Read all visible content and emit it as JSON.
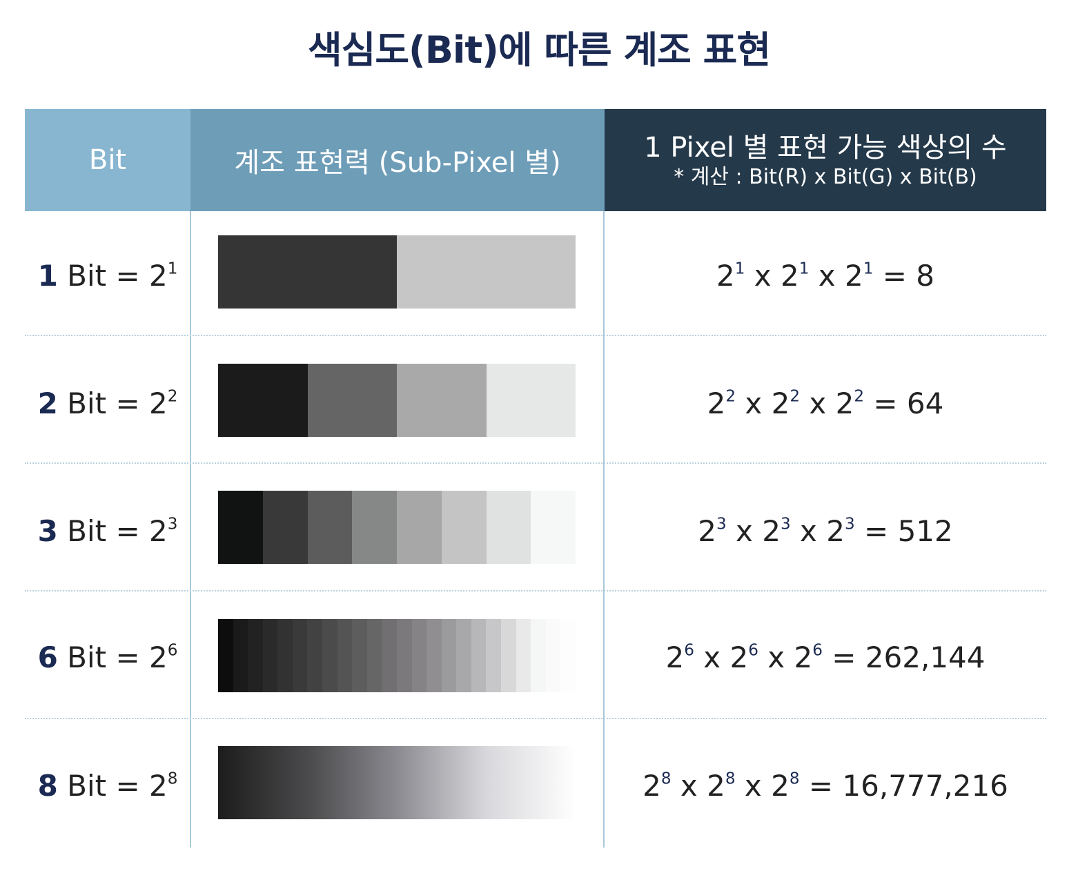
{
  "title": "색심도(Bit)에 따른 계조 표현",
  "headers": {
    "bit": "Bit",
    "gradation": "계조 표현력 (Sub-Pixel 별)",
    "colors_main": "1 Pixel 별 표현 가능 색상의 수",
    "colors_sub": "* 계산 : Bit(R) x Bit(G) x Bit(B)"
  },
  "colors": {
    "title": "#1b2a52",
    "header_bit": "#88b6d0",
    "header_gradation": "#6e9db8",
    "header_colors": "#24394a",
    "divider": "#a9c7da"
  },
  "rows": [
    {
      "num": "1",
      "label_rest": " Bit = 2",
      "exp": "1",
      "formula": [
        "2",
        "1",
        " x 2",
        "1",
        " x 2",
        "1",
        " = 8"
      ],
      "steps": [
        "#353535",
        "#c6c6c6"
      ]
    },
    {
      "num": "2",
      "label_rest": " Bit = 2",
      "exp": "2",
      "formula": [
        "2",
        "2",
        " x 2",
        "2",
        " x 2",
        "2",
        " = 64"
      ],
      "steps": [
        "#1b1b1b",
        "#646564",
        "#a9a9a9",
        "#e6e7e7"
      ]
    },
    {
      "num": "3",
      "label_rest": " Bit = 2",
      "exp": "3",
      "formula": [
        "2",
        "3",
        " x 2",
        "3",
        " x 2",
        "3",
        " = 512"
      ],
      "steps": [
        "#111212",
        "#393939",
        "#5c5c5c",
        "#868787",
        "#a7a7a7",
        "#c4c4c4",
        "#e0e1e1",
        "#f6f7f7"
      ]
    },
    {
      "num": "6",
      "label_rest": " Bit = 2",
      "exp": "6",
      "formula": [
        "2",
        "6",
        " x 2",
        "6",
        " x 2",
        "6",
        " = 262,144"
      ],
      "steps": [
        "#0d0d0d",
        "#1a1a1a",
        "#222222",
        "#2b2a2b",
        "#333233",
        "#3b3a3b",
        "#434243",
        "#4c4b4c",
        "#555455",
        "#5e5d5e",
        "#676667",
        "#716f71",
        "#7b797b",
        "#858386",
        "#908e91",
        "#9b9a9c",
        "#a8a7a9",
        "#b7b6b8",
        "#c7c6c8",
        "#d8d8d9",
        "#e9e9ea",
        "#f5f6f6",
        "#fafafa",
        "#fdfdfd"
      ]
    },
    {
      "num": "8",
      "label_rest": " Bit = 2",
      "exp": "8",
      "formula": [
        "2",
        "8",
        " x 2",
        "8",
        " x 2",
        "8",
        " = 16,777,216"
      ],
      "gradient": [
        "#1c1c1c",
        "#4a4a4c",
        "#8a8a90",
        "#d8d8dc",
        "#ffffff"
      ]
    }
  ]
}
